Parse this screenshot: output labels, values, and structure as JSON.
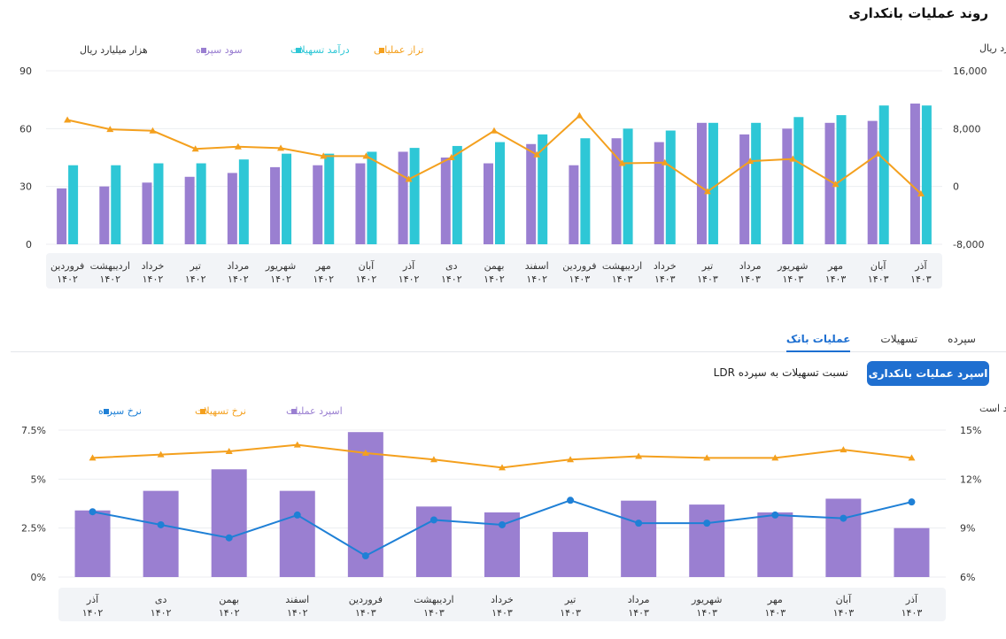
{
  "page": {
    "title": "روند عملیات بانکداری"
  },
  "tabs": [
    {
      "label": "سپرده",
      "active": false
    },
    {
      "label": "تسهیلات",
      "active": false
    },
    {
      "label": "عملیات بانک",
      "active": true
    }
  ],
  "subtabs": {
    "active_label": "اسپرد عملیات بانکداری",
    "other_label": "نسبت تسهیلات به سپرده LDR"
  },
  "chart_data": [
    {
      "type": "bar",
      "title": "",
      "left_axis_title": "هزار میلیارد ریال",
      "right_axis_title": "میلیارد ریال",
      "left_axis": {
        "min": 0,
        "max": 90,
        "ticks": [
          "0",
          "30",
          "60",
          "90"
        ]
      },
      "right_axis": {
        "min": -8000,
        "max": 16000,
        "ticks": [
          "-8,000",
          "0",
          "8,000",
          "16,000"
        ]
      },
      "categories": [
        {
          "month": "آذر",
          "year": "۱۴۰۳"
        },
        {
          "month": "آبان",
          "year": "۱۴۰۳"
        },
        {
          "month": "مهر",
          "year": "۱۴۰۳"
        },
        {
          "month": "شهریور",
          "year": "۱۴۰۳"
        },
        {
          "month": "مرداد",
          "year": "۱۴۰۳"
        },
        {
          "month": "تیر",
          "year": "۱۴۰۳"
        },
        {
          "month": "خرداد",
          "year": "۱۴۰۳"
        },
        {
          "month": "اردیبهشت",
          "year": "۱۴۰۳"
        },
        {
          "month": "فروردین",
          "year": "۱۴۰۳"
        },
        {
          "month": "اسفند",
          "year": "۱۴۰۲"
        },
        {
          "month": "بهمن",
          "year": "۱۴۰۲"
        },
        {
          "month": "دی",
          "year": "۱۴۰۲"
        },
        {
          "month": "آذر",
          "year": "۱۴۰۲"
        },
        {
          "month": "آبان",
          "year": "۱۴۰۲"
        },
        {
          "month": "مهر",
          "year": "۱۴۰۲"
        },
        {
          "month": "شهریور",
          "year": "۱۴۰۲"
        },
        {
          "month": "مرداد",
          "year": "۱۴۰۲"
        },
        {
          "month": "تیر",
          "year": "۱۴۰۲"
        },
        {
          "month": "خرداد",
          "year": "۱۴۰۲"
        },
        {
          "month": "اردیبهشت",
          "year": "۱۴۰۲"
        },
        {
          "month": "فروردین",
          "year": "۱۴۰۲"
        }
      ],
      "series": [
        {
          "name": "سود سپرده",
          "kind": "bar",
          "axis": "left",
          "color": "#9a7fd1",
          "values": [
            73,
            64,
            63,
            60,
            57,
            63,
            53,
            55,
            41,
            52,
            42,
            45,
            48,
            42,
            41,
            40,
            37,
            35,
            32,
            30,
            29
          ]
        },
        {
          "name": "درآمد تسهیلات",
          "kind": "bar",
          "axis": "left",
          "color": "#2ec7d6",
          "values": [
            72,
            72,
            67,
            66,
            63,
            63,
            59,
            60,
            55,
            57,
            53,
            51,
            50,
            48,
            47,
            47,
            44,
            42,
            42,
            41,
            41
          ]
        },
        {
          "name": "تراز عملیاتی",
          "kind": "line",
          "axis": "right",
          "color": "#f4a01e",
          "values": [
            -1000,
            4500,
            300,
            3800,
            3500,
            -700,
            3300,
            3200,
            9800,
            4400,
            7700,
            4000,
            1000,
            4200,
            4200,
            5300,
            5500,
            5200,
            7700,
            7900,
            9200
          ]
        }
      ]
    },
    {
      "type": "bar",
      "title": "",
      "right_axis_title": "اعداد بر اساس درصد است",
      "left_axis": {
        "min": 0,
        "max": 7.5,
        "ticks": [
          "0%",
          "2.5%",
          "5%",
          "7.5%"
        ]
      },
      "right_axis": {
        "min": 6,
        "max": 15,
        "ticks": [
          "6%",
          "9%",
          "12%",
          "15%"
        ]
      },
      "categories": [
        {
          "month": "آذر",
          "year": "۱۴۰۳"
        },
        {
          "month": "آبان",
          "year": "۱۴۰۳"
        },
        {
          "month": "مهر",
          "year": "۱۴۰۳"
        },
        {
          "month": "شهریور",
          "year": "۱۴۰۳"
        },
        {
          "month": "مرداد",
          "year": "۱۴۰۳"
        },
        {
          "month": "تیر",
          "year": "۱۴۰۳"
        },
        {
          "month": "خرداد",
          "year": "۱۴۰۳"
        },
        {
          "month": "اردیبهشت",
          "year": "۱۴۰۳"
        },
        {
          "month": "فروردین",
          "year": "۱۴۰۳"
        },
        {
          "month": "اسفند",
          "year": "۱۴۰۲"
        },
        {
          "month": "بهمن",
          "year": "۱۴۰۲"
        },
        {
          "month": "دی",
          "year": "۱۴۰۲"
        },
        {
          "month": "آذر",
          "year": "۱۴۰۲"
        }
      ],
      "series": [
        {
          "name": "اسپرد عملیات",
          "kind": "bar",
          "axis": "left",
          "color": "#9a7fd1",
          "values": [
            2.5,
            4.0,
            3.3,
            3.7,
            3.9,
            2.3,
            3.3,
            3.6,
            7.4,
            4.4,
            5.5,
            4.4,
            3.4
          ]
        },
        {
          "name": "نرخ تسهیلات",
          "kind": "line",
          "axis": "right",
          "color": "#f4a01e",
          "values": [
            13.3,
            13.8,
            13.3,
            13.3,
            13.4,
            13.2,
            12.7,
            13.2,
            13.6,
            14.1,
            13.7,
            13.5,
            13.3
          ]
        },
        {
          "name": "نرخ سپرده",
          "kind": "line",
          "axis": "right",
          "color": "#1f80d6",
          "values": [
            10.6,
            9.6,
            9.8,
            9.3,
            9.3,
            10.7,
            9.2,
            9.5,
            7.3,
            9.8,
            8.4,
            9.2,
            10.0
          ]
        }
      ]
    }
  ]
}
